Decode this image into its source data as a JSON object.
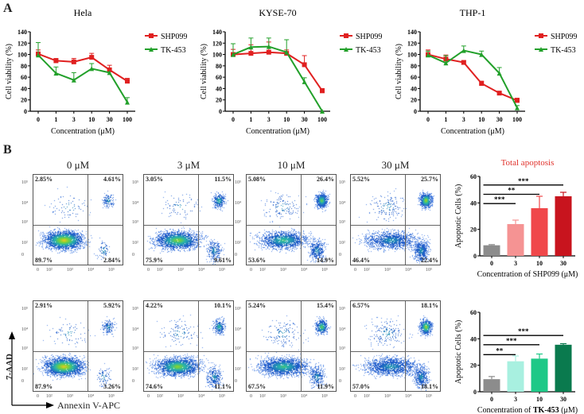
{
  "panel_a_letter": "A",
  "panel_b_letter": "B",
  "chart_data": [
    {
      "type": "line",
      "title": "Hela",
      "xlabel": "Concentration (μM)",
      "ylabel": "Cell viability (%)",
      "categories": [
        "0",
        "1",
        "3",
        "10",
        "30",
        "100"
      ],
      "yticks": [
        "0",
        "20",
        "40",
        "60",
        "80",
        "100",
        "120",
        "140"
      ],
      "ylim": [
        0,
        140
      ],
      "legend_position": "right",
      "series": [
        {
          "name": "SHP099",
          "color": "#e02020",
          "marker": "square",
          "values": [
            101,
            89,
            87,
            95,
            73,
            53
          ],
          "errors": [
            7,
            4,
            6,
            7,
            8,
            5
          ]
        },
        {
          "name": "TK-453",
          "color": "#22a02a",
          "marker": "triangle",
          "values": [
            99,
            67,
            55,
            75,
            68,
            16
          ],
          "errors": [
            22,
            11,
            13,
            9,
            0,
            8
          ]
        }
      ]
    },
    {
      "type": "line",
      "title": "KYSE-70",
      "xlabel": "Concentration (μM)",
      "ylabel": "Cell viability (%)",
      "categories": [
        "0",
        "1",
        "3",
        "10",
        "30",
        "100"
      ],
      "yticks": [
        "0",
        "20",
        "40",
        "60",
        "80",
        "100",
        "120",
        "140"
      ],
      "ylim": [
        0,
        140
      ],
      "legend_position": "right",
      "series": [
        {
          "name": "SHP099",
          "color": "#e02020",
          "marker": "square",
          "values": [
            100,
            102,
            104,
            102,
            82,
            36
          ],
          "errors": [
            9,
            15,
            18,
            6,
            16,
            4
          ]
        },
        {
          "name": "TK-453",
          "color": "#22a02a",
          "marker": "triangle",
          "values": [
            100,
            113,
            114,
            104,
            52,
            0
          ],
          "errors": [
            19,
            16,
            15,
            22,
            7,
            0
          ]
        }
      ]
    },
    {
      "type": "line",
      "title": "THP-1",
      "xlabel": "Concentration (μM)",
      "ylabel": "Cell viability (%)",
      "categories": [
        "0",
        "1",
        "3",
        "10",
        "30",
        "100"
      ],
      "yticks": [
        "0",
        "20",
        "40",
        "60",
        "80",
        "100",
        "120",
        "140"
      ],
      "ylim": [
        0,
        140
      ],
      "legend_position": "right",
      "series": [
        {
          "name": "SHP099",
          "color": "#e02020",
          "marker": "square",
          "values": [
            100,
            92,
            86,
            49,
            32,
            19
          ],
          "errors": [
            8,
            7,
            3,
            4,
            2,
            4
          ]
        },
        {
          "name": "TK-453",
          "color": "#22a02a",
          "marker": "triangle",
          "values": [
            99,
            85,
            107,
            100,
            67,
            6
          ],
          "errors": [
            7,
            13,
            8,
            6,
            10,
            4
          ]
        }
      ]
    },
    {
      "type": "bar",
      "title": "Total apoptosis",
      "title_color": "#e0302a",
      "xlabel": "Concentration of SHP099 (μM)",
      "ylabel": "Apoptotic Cells (%)",
      "categories": [
        "0",
        "3",
        "10",
        "30"
      ],
      "values": [
        8,
        24,
        36,
        45
      ],
      "errors": [
        0.5,
        3,
        9,
        3
      ],
      "colors": [
        "#8c8c8c",
        "#f59393",
        "#f0474a",
        "#c8141e"
      ],
      "yticks": [
        "0",
        "20",
        "40",
        "60"
      ],
      "ylim": [
        0,
        60
      ],
      "significance": [
        {
          "from": "0",
          "to": "3",
          "label": "***"
        },
        {
          "from": "0",
          "to": "10",
          "label": "**"
        },
        {
          "from": "0",
          "to": "30",
          "label": "***"
        }
      ]
    },
    {
      "type": "bar",
      "title": "",
      "xlabel_prefix": "Concentration of ",
      "xlabel_bold": "TK-453",
      "xlabel_suffix": " (μM)",
      "ylabel": "Apoptotic Cells (%)",
      "categories": [
        "0",
        "3",
        "10",
        "30"
      ],
      "values": [
        9.5,
        23,
        25,
        35.5
      ],
      "errors": [
        2,
        4,
        3.5,
        0.8
      ],
      "colors": [
        "#8c8c8c",
        "#a8f0e0",
        "#1ec887",
        "#0a7a4e"
      ],
      "yticks": [
        "0",
        "20",
        "40",
        "60"
      ],
      "ylim": [
        0,
        60
      ],
      "significance": [
        {
          "from": "0",
          "to": "3",
          "label": "**"
        },
        {
          "from": "0",
          "to": "10",
          "label": "***"
        },
        {
          "from": "0",
          "to": "30",
          "label": "***"
        }
      ]
    }
  ],
  "flow": {
    "y_axis_label": "7-AAD",
    "x_axis_label": "Annexin V-APC",
    "concentrations": [
      "0 μM",
      "3 μM",
      "10 μM",
      "30 μM"
    ],
    "x_ticks": [
      "0",
      "10²",
      "10³",
      "10⁴",
      "10⁵"
    ],
    "y_ticks": [
      "10⁵",
      "10⁴",
      "10³",
      "10²",
      "0"
    ],
    "rows": [
      {
        "treatment": "SHP099",
        "plots": [
          {
            "tl": "2.85%",
            "tr": "4.61%",
            "bl": "89.7%",
            "br": "2.84%"
          },
          {
            "tl": "3.05%",
            "tr": "11.5%",
            "bl": "75.9%",
            "br": "9.61%"
          },
          {
            "tl": "5.08%",
            "tr": "26.4%",
            "bl": "53.6%",
            "br": "14.9%"
          },
          {
            "tl": "5.52%",
            "tr": "25.7%",
            "bl": "46.4%",
            "br": "22.4%"
          }
        ]
      },
      {
        "treatment": "TK-453",
        "plots": [
          {
            "tl": "2.91%",
            "tr": "5.92%",
            "bl": "87.9%",
            "br": "3.26%"
          },
          {
            "tl": "4.22%",
            "tr": "10.1%",
            "bl": "74.6%",
            "br": "11.1%"
          },
          {
            "tl": "5.24%",
            "tr": "15.4%",
            "bl": "67.5%",
            "br": "11.9%"
          },
          {
            "tl": "6.57%",
            "tr": "18.1%",
            "bl": "57.0%",
            "br": "18.1%"
          }
        ]
      }
    ]
  }
}
